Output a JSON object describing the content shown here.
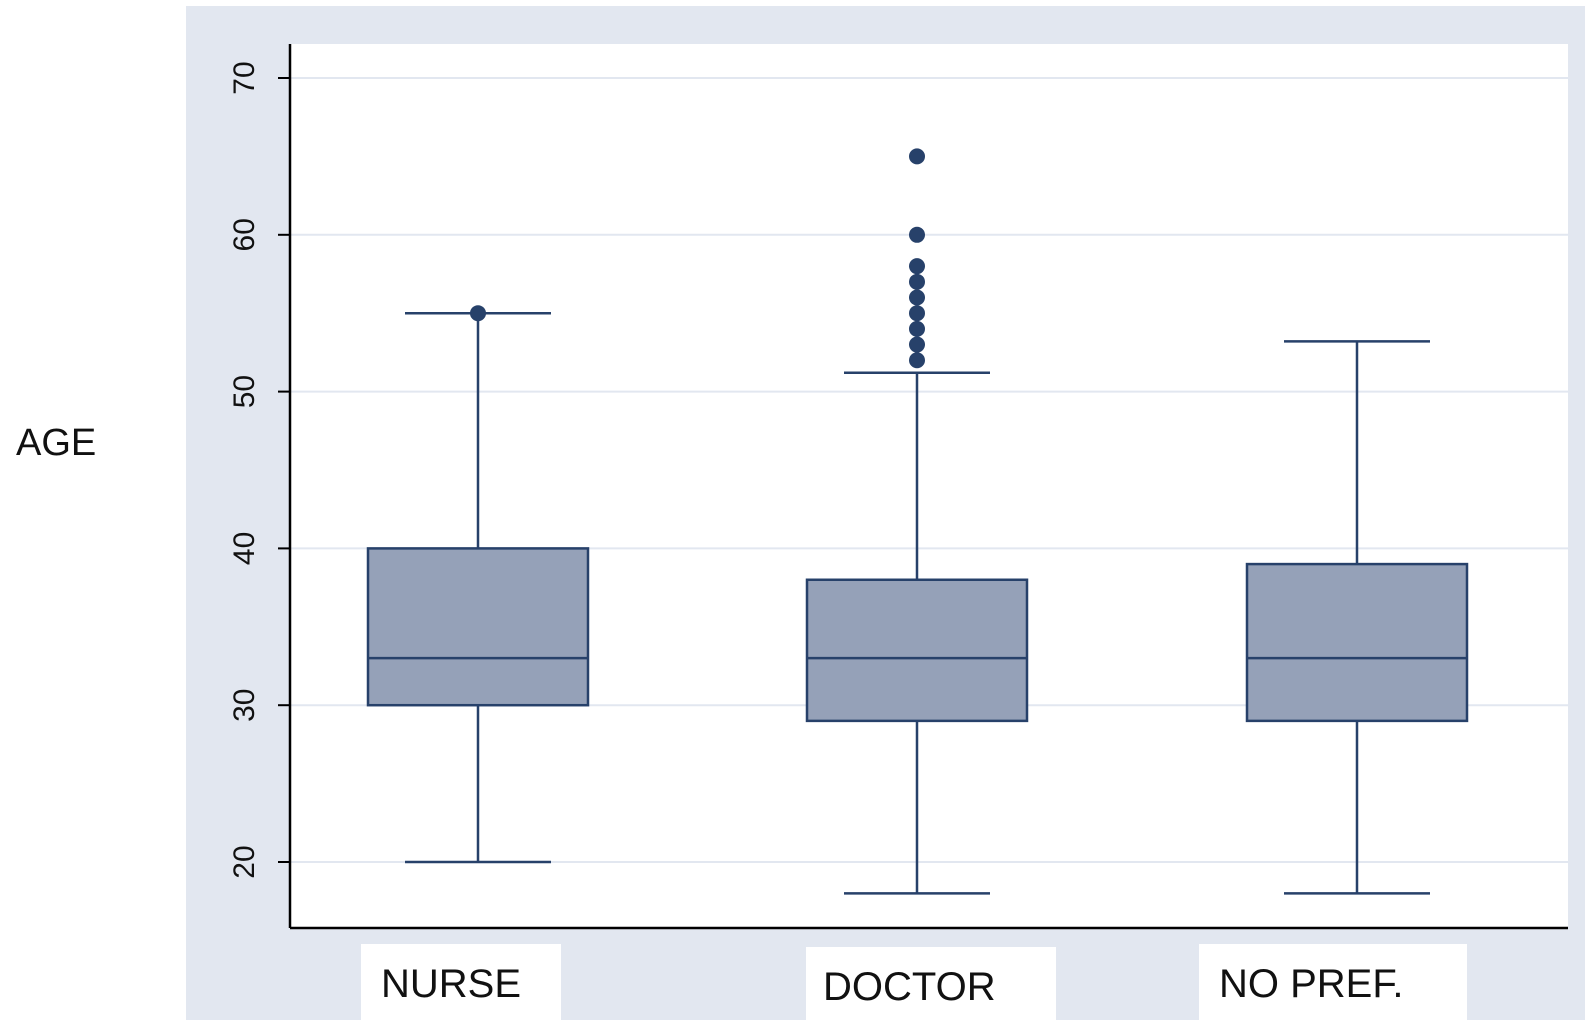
{
  "chart_data": {
    "type": "box",
    "ylabel": "AGE",
    "xlabel": "",
    "title": "",
    "ylim": [
      14,
      72
    ],
    "yticks": [
      20,
      30,
      40,
      50,
      60,
      70
    ],
    "grid": true,
    "colors": {
      "box_fill": "#95a1b8",
      "stroke": "#27416a",
      "outlier": "#27416a",
      "grid": "#e2e7f0",
      "background": "#e2e7f0"
    },
    "categories": [
      "NURSE",
      "DOCTOR",
      "NO PREF."
    ],
    "boxes": [
      {
        "name": "NURSE",
        "whisker_low": 20,
        "q1": 30,
        "median": 33,
        "q3": 40,
        "whisker_high": 55,
        "outliers": [
          55
        ]
      },
      {
        "name": "DOCTOR",
        "whisker_low": 18,
        "q1": 29,
        "median": 33,
        "q3": 38,
        "whisker_high": 51.2,
        "outliers": [
          52,
          53,
          54,
          55,
          56,
          57,
          58,
          60,
          65
        ]
      },
      {
        "name": "NO PREF.",
        "whisker_low": 18,
        "q1": 29,
        "median": 33,
        "q3": 39,
        "whisker_high": 53.2,
        "outliers": []
      }
    ]
  }
}
